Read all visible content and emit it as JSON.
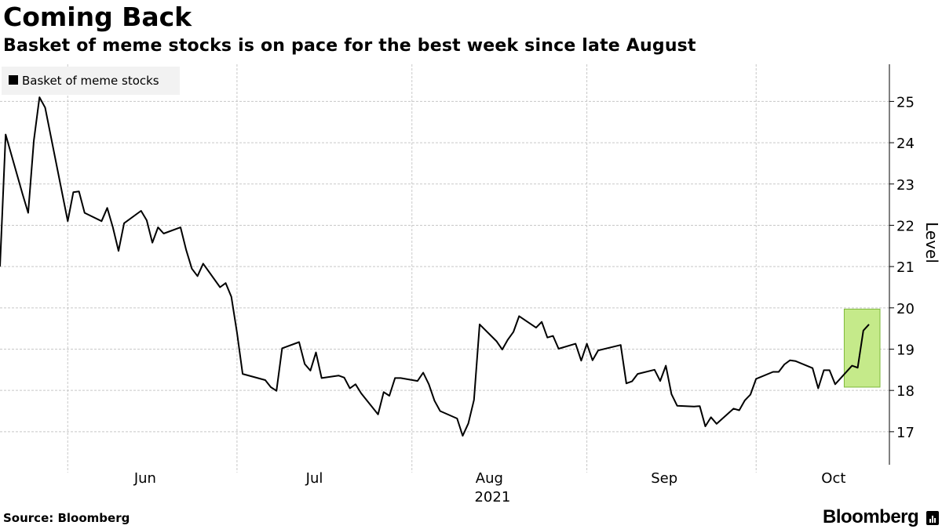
{
  "header": {
    "title": "Coming Back",
    "subtitle": "Basket of meme stocks is on pace for the best week since late August"
  },
  "footer": {
    "source": "Source: Bloomberg",
    "brand": "Bloomberg"
  },
  "colors": {
    "line": "#000000",
    "highlight_fill": "#c5ea8a",
    "highlight_stroke": "#7db83a",
    "grid": "#c8c8c8",
    "legend_bg": "#f2f2f2"
  },
  "chart_data": {
    "type": "line",
    "title": "Coming Back",
    "subtitle": "Basket of meme stocks is on pace for the best week since late August",
    "ylabel": "Level",
    "ylim": [
      16.2,
      25.9
    ],
    "y_ticks": [
      17,
      18,
      19,
      20,
      21,
      22,
      23,
      24,
      25
    ],
    "x_year_label": "2021",
    "x_month_labels": [
      "Jun",
      "Jul",
      "Aug",
      "Sep",
      "Oct"
    ],
    "grid": true,
    "legend": {
      "position": "top-left",
      "entries": [
        "Basket of meme stocks"
      ]
    },
    "series": [
      {
        "name": "Basket of meme stocks",
        "x": [
          "2021-05-20",
          "2021-05-21",
          "2021-05-24",
          "2021-05-25",
          "2021-05-26",
          "2021-05-27",
          "2021-05-28",
          "2021-06-01",
          "2021-06-02",
          "2021-06-03",
          "2021-06-04",
          "2021-06-07",
          "2021-06-08",
          "2021-06-09",
          "2021-06-10",
          "2021-06-11",
          "2021-06-14",
          "2021-06-15",
          "2021-06-16",
          "2021-06-17",
          "2021-06-18",
          "2021-06-21",
          "2021-06-22",
          "2021-06-23",
          "2021-06-24",
          "2021-06-25",
          "2021-06-28",
          "2021-06-29",
          "2021-06-30",
          "2021-07-01",
          "2021-07-02",
          "2021-07-06",
          "2021-07-07",
          "2021-07-08",
          "2021-07-09",
          "2021-07-12",
          "2021-07-13",
          "2021-07-14",
          "2021-07-15",
          "2021-07-16",
          "2021-07-19",
          "2021-07-20",
          "2021-07-21",
          "2021-07-22",
          "2021-07-23",
          "2021-07-26",
          "2021-07-27",
          "2021-07-28",
          "2021-07-29",
          "2021-07-30",
          "2021-08-02",
          "2021-08-03",
          "2021-08-04",
          "2021-08-05",
          "2021-08-06",
          "2021-08-09",
          "2021-08-10",
          "2021-08-11",
          "2021-08-12",
          "2021-08-13",
          "2021-08-16",
          "2021-08-17",
          "2021-08-18",
          "2021-08-19",
          "2021-08-20",
          "2021-08-23",
          "2021-08-24",
          "2021-08-25",
          "2021-08-26",
          "2021-08-27",
          "2021-08-30",
          "2021-08-31",
          "2021-09-01",
          "2021-09-02",
          "2021-09-03",
          "2021-09-07",
          "2021-09-08",
          "2021-09-09",
          "2021-09-10",
          "2021-09-13",
          "2021-09-14",
          "2021-09-15",
          "2021-09-16",
          "2021-09-17",
          "2021-09-20",
          "2021-09-21",
          "2021-09-22",
          "2021-09-23",
          "2021-09-24",
          "2021-09-27",
          "2021-09-28",
          "2021-09-29",
          "2021-09-30",
          "2021-10-01",
          "2021-10-04",
          "2021-10-05",
          "2021-10-06",
          "2021-10-07",
          "2021-10-08",
          "2021-10-11",
          "2021-10-12",
          "2021-10-13",
          "2021-10-14",
          "2021-10-15",
          "2021-10-18",
          "2021-10-19",
          "2021-10-20",
          "2021-10-21"
        ],
        "values": [
          21.0,
          24.2,
          22.75,
          22.3,
          24.05,
          25.1,
          24.85,
          22.1,
          22.8,
          22.82,
          22.3,
          22.1,
          22.42,
          21.95,
          21.38,
          22.05,
          22.35,
          22.12,
          21.58,
          21.95,
          21.8,
          21.95,
          21.4,
          20.95,
          20.77,
          21.07,
          20.5,
          20.6,
          20.27,
          19.4,
          18.4,
          18.25,
          18.08,
          17.99,
          19.02,
          19.17,
          18.64,
          18.48,
          18.92,
          18.3,
          18.36,
          18.31,
          18.05,
          18.15,
          17.93,
          17.42,
          17.96,
          17.87,
          18.3,
          18.3,
          18.23,
          18.43,
          18.15,
          17.75,
          17.5,
          17.32,
          16.9,
          17.2,
          17.77,
          19.6,
          19.19,
          18.99,
          19.23,
          19.42,
          19.8,
          19.52,
          19.66,
          19.28,
          19.32,
          19.01,
          19.13,
          18.72,
          19.13,
          18.73,
          18.97,
          19.1,
          18.17,
          18.22,
          18.4,
          18.5,
          18.23,
          18.6,
          17.91,
          17.63,
          17.61,
          17.62,
          17.13,
          17.35,
          17.19,
          17.56,
          17.52,
          17.76,
          17.9,
          18.28,
          18.45,
          18.45,
          18.63,
          18.73,
          18.71,
          18.54,
          18.05,
          18.49,
          18.49,
          18.15,
          18.6,
          18.55,
          19.45,
          19.6
        ]
      }
    ],
    "highlight": {
      "x_start": "2021-10-18",
      "x_end": "2021-10-21",
      "y_min": 18.08,
      "y_max": 19.97
    }
  }
}
